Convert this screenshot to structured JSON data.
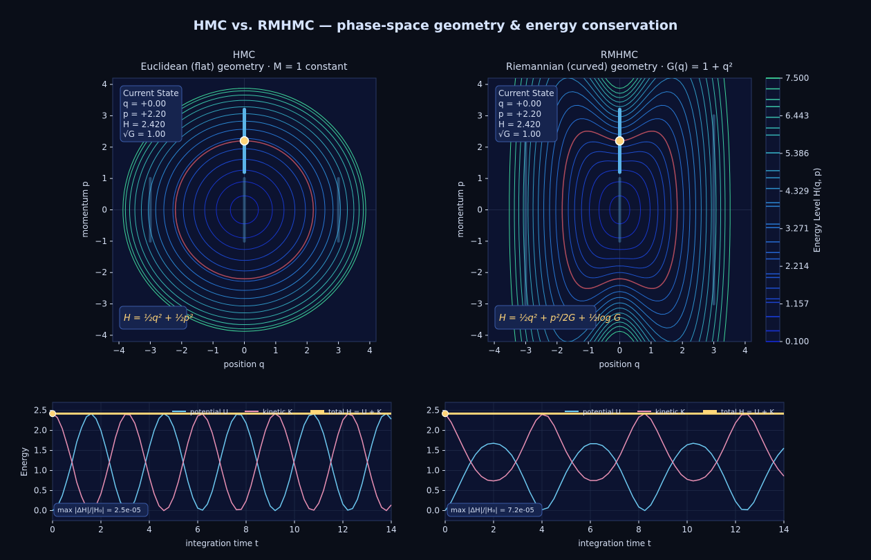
{
  "figure": {
    "title": "HMC vs. RMHMC — phase-space geometry & energy conservation",
    "colors": {
      "background": "#0a0e18",
      "panel": "#0c1330",
      "text": "#d4def2",
      "title": "#d6e4ff",
      "low_energy": "#1428c8",
      "mid_energy": "#2a82d6",
      "high_energy": "#3ed69a",
      "reference_contour": "#b04a5a",
      "trajectory": "#5bb4e8",
      "marker": "#ffd479",
      "potential": "#6cc8f0",
      "kinetic": "#e890b4",
      "total": "#ffd879",
      "grid": "#25314f"
    }
  },
  "chart_data": [
    {
      "id": "hmc_phase",
      "type": "contour",
      "title": "HMC",
      "subtitle": "Euclidean (flat) geometry  ·  M = 1 constant",
      "xlabel": "position  q",
      "ylabel": "momentum  p",
      "xlim": [
        -4.2,
        4.2
      ],
      "ylim": [
        -4.2,
        4.2
      ],
      "xticks": [
        -4,
        -3,
        -2,
        -1,
        0,
        1,
        2,
        3,
        4
      ],
      "yticks": [
        -4,
        -3,
        -2,
        -1,
        0,
        1,
        2,
        3,
        4
      ],
      "contour_levels": [
        0.1,
        0.4,
        0.8,
        1.3,
        1.9,
        2.6,
        3.3,
        4.0,
        4.7,
        5.4,
        6.1,
        6.7,
        7.2,
        7.5
      ],
      "reference_level": 2.42,
      "trajectory": {
        "q": [
          0,
          0
        ],
        "p": [
          1.2,
          3.2
        ]
      },
      "faint_segments": [
        {
          "q": 0,
          "p": [
            -1.0,
            1.0
          ]
        },
        {
          "q": -3,
          "p": [
            -1.0,
            1.0
          ]
        },
        {
          "q": 3,
          "p": [
            -1.0,
            1.0
          ]
        }
      ],
      "current_state": {
        "q": 0.0,
        "p": 2.2
      },
      "state_box": [
        "Current State",
        "q = +0.00",
        "p = +2.20",
        "H = 2.420",
        "√G = 1.00"
      ],
      "formula": "H = ½q² + ½p²"
    },
    {
      "id": "rmhmc_phase",
      "type": "contour",
      "title": "RMHMC",
      "subtitle": "Riemannian (curved) geometry  ·  G(q) = 1 + q²",
      "xlabel": "position  q",
      "ylabel": "momentum  p",
      "xlim": [
        -4.2,
        4.2
      ],
      "ylim": [
        -4.2,
        4.2
      ],
      "xticks": [
        -4,
        -3,
        -2,
        -1,
        0,
        1,
        2,
        3,
        4
      ],
      "yticks": [
        -4,
        -3,
        -2,
        -1,
        0,
        1,
        2,
        3,
        4
      ],
      "contour_levels": [
        0.1,
        0.4,
        0.8,
        1.2,
        1.6,
        2.0,
        2.42,
        2.9,
        3.4,
        3.9,
        4.4,
        4.9,
        5.4,
        5.9,
        6.4,
        6.9,
        7.5
      ],
      "reference_level": 2.42,
      "trajectory": {
        "q": [
          0,
          0
        ],
        "p": [
          1.2,
          3.2
        ]
      },
      "faint_segments": [
        {
          "q": 0,
          "p": [
            -1.0,
            1.0
          ]
        },
        {
          "q": -3,
          "p": [
            -3.0,
            3.0
          ]
        },
        {
          "q": 3,
          "p": [
            -3.0,
            3.0
          ]
        }
      ],
      "current_state": {
        "q": 0.0,
        "p": 2.2
      },
      "state_box": [
        "Current State",
        "q = +0.00",
        "p = +2.20",
        "H = 2.420",
        "√G = 1.00"
      ],
      "formula": "H = ½q² + p²/2G + ½log G"
    },
    {
      "id": "hmc_energy",
      "type": "line",
      "xlabel": "integration time  t",
      "ylabel": "Energy",
      "xlim": [
        0,
        14
      ],
      "ylim": [
        -0.25,
        2.7
      ],
      "xticks": [
        0,
        2,
        4,
        6,
        8,
        10,
        12,
        14
      ],
      "yticks": [
        0.0,
        0.5,
        1.0,
        1.5,
        2.0,
        2.5
      ],
      "series": [
        {
          "name": "potential  U",
          "x": [
            0,
            0.2,
            0.4,
            0.6,
            0.8,
            1,
            1.2,
            1.4,
            1.6,
            1.8,
            2,
            2.2,
            2.4,
            2.6,
            2.8,
            3,
            3.2,
            3.4,
            3.6,
            3.8,
            4,
            4.2,
            4.4,
            4.6,
            4.8,
            5,
            5.2,
            5.4,
            5.6,
            5.8,
            6,
            6.2,
            6.4,
            6.6,
            6.8,
            7,
            7.2,
            7.4,
            7.6,
            7.8,
            8,
            8.2,
            8.4,
            8.6,
            8.8,
            9,
            9.2,
            9.4,
            9.6,
            9.8,
            10,
            10.2,
            10.4,
            10.6,
            10.8,
            11,
            11.2,
            11.4,
            11.6,
            11.8,
            12,
            12.2,
            12.4,
            12.6,
            12.8,
            13,
            13.2,
            13.4,
            13.6,
            13.8,
            14
          ],
          "y": [
            0,
            0.1,
            0.37,
            0.77,
            1.2,
            1.71,
            2.07,
            2.34,
            2.42,
            2.29,
            2.0,
            1.57,
            1.09,
            0.6,
            0.22,
            0.02,
            0.03,
            0.24,
            0.62,
            1.1,
            1.58,
            2.0,
            2.3,
            2.42,
            2.34,
            2.09,
            1.7,
            1.21,
            0.72,
            0.32,
            0.06,
            0.01,
            0.16,
            0.48,
            0.93,
            1.42,
            1.88,
            2.22,
            2.4,
            2.39,
            2.18,
            1.81,
            1.34,
            0.85,
            0.42,
            0.11,
            0.0,
            0.09,
            0.38,
            0.78,
            1.27,
            1.75,
            2.14,
            2.37,
            2.41,
            2.24,
            1.92,
            1.47,
            0.97,
            0.52,
            0.16,
            0.01,
            0.05,
            0.28,
            0.68,
            1.18,
            1.65,
            2.06,
            2.34,
            2.42,
            2.28
          ],
          "color": "#6cc8f0"
        },
        {
          "name": "kinetic  K",
          "x": [
            0,
            0.2,
            0.4,
            0.6,
            0.8,
            1,
            1.2,
            1.4,
            1.6,
            1.8,
            2,
            2.2,
            2.4,
            2.6,
            2.8,
            3,
            3.2,
            3.4,
            3.6,
            3.8,
            4,
            4.2,
            4.4,
            4.6,
            4.8,
            5,
            5.2,
            5.4,
            5.6,
            5.8,
            6,
            6.2,
            6.4,
            6.6,
            6.8,
            7,
            7.2,
            7.4,
            7.6,
            7.8,
            8,
            8.2,
            8.4,
            8.6,
            8.8,
            9,
            9.2,
            9.4,
            9.6,
            9.8,
            10,
            10.2,
            10.4,
            10.6,
            10.8,
            11,
            11.2,
            11.4,
            11.6,
            11.8,
            12,
            12.2,
            12.4,
            12.6,
            12.8,
            13,
            13.2,
            13.4,
            13.6,
            13.8,
            14
          ],
          "y": [
            2.42,
            2.32,
            2.05,
            1.65,
            1.22,
            0.71,
            0.35,
            0.08,
            0.0,
            0.13,
            0.42,
            0.85,
            1.33,
            1.82,
            2.2,
            2.4,
            2.39,
            2.18,
            1.8,
            1.32,
            0.84,
            0.42,
            0.12,
            0.0,
            0.08,
            0.33,
            0.72,
            1.21,
            1.7,
            2.1,
            2.36,
            2.41,
            2.26,
            1.94,
            1.49,
            1.0,
            0.54,
            0.2,
            0.02,
            0.03,
            0.24,
            0.61,
            1.08,
            1.57,
            2.0,
            2.31,
            2.42,
            2.33,
            2.04,
            1.64,
            1.15,
            0.67,
            0.28,
            0.05,
            0.01,
            0.18,
            0.5,
            0.95,
            1.45,
            1.9,
            2.26,
            2.41,
            2.37,
            2.14,
            1.74,
            1.24,
            0.77,
            0.36,
            0.08,
            0.0,
            0.14
          ],
          "color": "#e890b4"
        },
        {
          "name": "total  H = U + K",
          "x": [
            0,
            14
          ],
          "y": [
            2.42,
            2.42
          ],
          "color": "#ffd879"
        }
      ],
      "legend": "top-right",
      "annotation": "max |ΔH|/|H₀| = 2.5e-05"
    },
    {
      "id": "rmhmc_energy",
      "type": "line",
      "xlabel": "integration time  t",
      "ylabel": "",
      "xlim": [
        0,
        14
      ],
      "ylim": [
        -0.25,
        2.7
      ],
      "xticks": [
        0,
        2,
        4,
        6,
        8,
        10,
        12,
        14
      ],
      "yticks": [
        0.0,
        0.5,
        1.0,
        1.5,
        2.0,
        2.5
      ],
      "series": [
        {
          "name": "potential  U",
          "x": [
            0,
            0.25,
            0.5,
            0.75,
            1,
            1.25,
            1.5,
            1.75,
            2,
            2.25,
            2.5,
            2.75,
            3,
            3.25,
            3.5,
            3.75,
            4,
            4.25,
            4.5,
            4.75,
            5,
            5.25,
            5.5,
            5.75,
            6,
            6.25,
            6.5,
            6.75,
            7,
            7.25,
            7.5,
            7.75,
            8,
            8.25,
            8.5,
            8.75,
            9,
            9.25,
            9.5,
            9.75,
            10,
            10.25,
            10.5,
            10.75,
            11,
            11.25,
            11.5,
            11.75,
            12,
            12.25,
            12.5,
            12.75,
            13,
            13.25,
            13.5,
            13.75,
            14
          ],
          "y": [
            0.0,
            0.22,
            0.53,
            0.85,
            1.15,
            1.4,
            1.57,
            1.66,
            1.68,
            1.65,
            1.55,
            1.38,
            1.12,
            0.8,
            0.46,
            0.17,
            0.02,
            0.07,
            0.3,
            0.63,
            0.95,
            1.22,
            1.44,
            1.6,
            1.67,
            1.67,
            1.62,
            1.49,
            1.29,
            1.01,
            0.68,
            0.35,
            0.09,
            0.0,
            0.14,
            0.42,
            0.74,
            1.05,
            1.31,
            1.52,
            1.64,
            1.68,
            1.65,
            1.58,
            1.42,
            1.18,
            0.88,
            0.54,
            0.23,
            0.03,
            0.02,
            0.2,
            0.52,
            0.84,
            1.14,
            1.38,
            1.56
          ],
          "color": "#6cc8f0"
        },
        {
          "name": "kinetic  K",
          "x": [
            0,
            0.25,
            0.5,
            0.75,
            1,
            1.25,
            1.5,
            1.75,
            2,
            2.25,
            2.5,
            2.75,
            3,
            3.25,
            3.5,
            3.75,
            4,
            4.25,
            4.5,
            4.75,
            5,
            5.25,
            5.5,
            5.75,
            6,
            6.25,
            6.5,
            6.75,
            7,
            7.25,
            7.5,
            7.75,
            8,
            8.25,
            8.5,
            8.75,
            9,
            9.25,
            9.5,
            9.75,
            10,
            10.25,
            10.5,
            10.75,
            11,
            11.25,
            11.5,
            11.75,
            12,
            12.25,
            12.5,
            12.75,
            13,
            13.25,
            13.5,
            13.75,
            14
          ],
          "y": [
            2.42,
            2.2,
            1.89,
            1.57,
            1.27,
            1.02,
            0.85,
            0.76,
            0.74,
            0.77,
            0.87,
            1.04,
            1.3,
            1.62,
            1.96,
            2.25,
            2.4,
            2.35,
            2.12,
            1.79,
            1.47,
            1.2,
            0.98,
            0.82,
            0.75,
            0.75,
            0.8,
            0.93,
            1.13,
            1.41,
            1.74,
            2.07,
            2.33,
            2.42,
            2.28,
            2.0,
            1.68,
            1.37,
            1.11,
            0.9,
            0.78,
            0.74,
            0.77,
            0.84,
            1.0,
            1.24,
            1.54,
            1.88,
            2.19,
            2.39,
            2.4,
            2.22,
            1.9,
            1.58,
            1.28,
            1.04,
            0.86
          ],
          "color": "#e890b4"
        },
        {
          "name": "total  H = U + K",
          "x": [
            0,
            14
          ],
          "y": [
            2.42,
            2.42
          ],
          "color": "#ffd879"
        }
      ],
      "legend": "top-right",
      "annotation": "max |ΔH|/|H₀| = 7.2e-05"
    }
  ],
  "colorbar": {
    "label": "Energy Level  H(q, p)",
    "ticks": [
      "7.500",
      "6.443",
      "5.386",
      "4.329",
      "3.271",
      "2.214",
      "1.157",
      "0.100"
    ],
    "range": [
      0.1,
      7.5
    ]
  }
}
